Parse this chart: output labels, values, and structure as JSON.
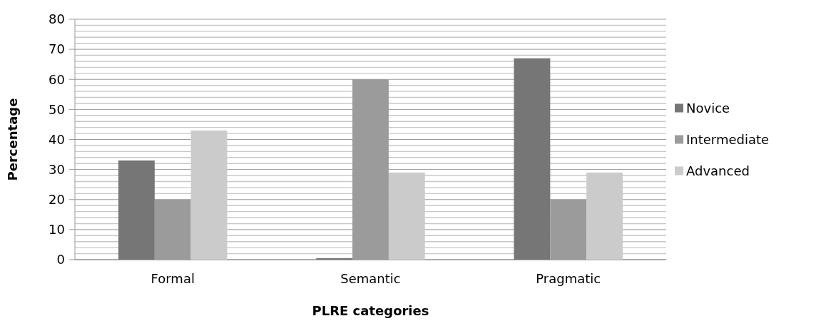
{
  "chart_data": {
    "type": "bar",
    "xlabel": "PLRE categories",
    "ylabel": "Percentage",
    "categories": [
      "Formal",
      "Semantic",
      "Pragmatic"
    ],
    "series": [
      {
        "name": "Novice",
        "color": "#767676",
        "values": [
          33,
          0.5,
          67
        ]
      },
      {
        "name": "Intermediate",
        "color": "#9b9b9b",
        "values": [
          20,
          60,
          20
        ]
      },
      {
        "name": "Advanced",
        "color": "#cbcbcb",
        "values": [
          43,
          29,
          29
        ]
      }
    ],
    "ylim": [
      0,
      80
    ],
    "yticks": [
      0,
      {
        "value": 2,
        "label": null
      },
      {
        "value": 4,
        "label": null
      },
      {
        "value": 6,
        "label": null
      },
      {
        "value": 8,
        "label": null
      },
      10,
      {
        "value": 12,
        "label": null
      },
      {
        "value": 14,
        "label": null
      },
      {
        "value": 16,
        "label": null
      },
      {
        "value": 18,
        "label": null
      },
      20,
      {
        "value": 22,
        "label": null
      },
      {
        "value": 24,
        "label": null
      },
      {
        "value": 26,
        "label": null
      },
      {
        "value": 28,
        "label": null
      },
      30,
      {
        "value": 32,
        "label": null
      },
      {
        "value": 34,
        "label": null
      },
      {
        "value": 36,
        "label": null
      },
      {
        "value": 38,
        "label": null
      },
      40,
      {
        "value": 42,
        "label": null
      },
      {
        "value": 44,
        "label": null
      },
      {
        "value": 46,
        "label": null
      },
      {
        "value": 48,
        "label": null
      },
      50,
      {
        "value": 52,
        "label": null
      },
      {
        "value": 54,
        "label": null
      },
      {
        "value": 56,
        "label": null
      },
      {
        "value": 58,
        "label": null
      },
      60,
      {
        "value": 62,
        "label": null
      },
      {
        "value": 64,
        "label": null
      },
      {
        "value": 66,
        "label": null
      },
      {
        "value": 68,
        "label": null
      },
      70,
      {
        "value": 72,
        "label": null
      },
      {
        "value": 74,
        "label": null
      },
      {
        "value": 76,
        "label": null
      },
      {
        "value": 78,
        "label": null
      },
      80
    ],
    "grid": "y",
    "legend": "right"
  }
}
